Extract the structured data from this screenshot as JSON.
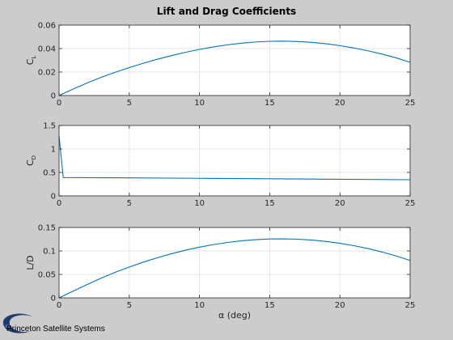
{
  "figure_title": "Lift and Drag Coefficients",
  "logo": {
    "text": "Princeton Satellite Systems"
  },
  "colors": {
    "line": "#0072bd",
    "axes_bg": "#ffffff",
    "figure_bg": "#cccccc",
    "grid": "#e6e6e6",
    "axis": "#262626"
  },
  "chart_data": [
    {
      "type": "line",
      "ylabel_main": "C",
      "ylabel_sub": "L",
      "xlabel": "",
      "xlim": [
        0,
        25
      ],
      "ylim": [
        0,
        0.06
      ],
      "grid": true,
      "xticks": [
        0,
        5,
        10,
        15,
        20,
        25
      ],
      "xtick_labels": [
        "0",
        "5",
        "10",
        "15",
        "20",
        "25"
      ],
      "yticks": [
        0,
        0.02,
        0.04,
        0.06
      ],
      "ytick_labels": [
        "0",
        "0.02",
        "0.04",
        "0.06"
      ],
      "x": [
        0,
        1,
        2,
        3,
        4,
        5,
        6,
        7,
        8,
        9,
        10,
        11,
        12,
        13,
        14,
        15,
        16,
        17,
        18,
        19,
        20,
        21,
        22,
        23,
        24,
        25
      ],
      "y": [
        0,
        0.0055,
        0.0107,
        0.0155,
        0.0198,
        0.0238,
        0.0275,
        0.0309,
        0.034,
        0.0368,
        0.0393,
        0.0414,
        0.0432,
        0.0446,
        0.0456,
        0.0462,
        0.0463,
        0.046,
        0.0453,
        0.0441,
        0.0425,
        0.0405,
        0.0381,
        0.0353,
        0.0321,
        0.0283
      ]
    },
    {
      "type": "line",
      "ylabel_main": "C",
      "ylabel_sub": "D",
      "xlabel": "",
      "xlim": [
        0,
        25
      ],
      "ylim": [
        0,
        1.5
      ],
      "grid": true,
      "xticks": [
        0,
        5,
        10,
        15,
        20,
        25
      ],
      "xtick_labels": [
        "0",
        "5",
        "10",
        "15",
        "20",
        "25"
      ],
      "yticks": [
        0,
        0.5,
        1,
        1.5
      ],
      "ytick_labels": [
        "0",
        "0.5",
        "1",
        "1.5"
      ],
      "x": [
        0,
        0.3,
        1,
        5,
        10,
        15,
        20,
        25
      ],
      "y": [
        1.28,
        0.39,
        0.39,
        0.385,
        0.375,
        0.365,
        0.355,
        0.345
      ]
    },
    {
      "type": "line",
      "ylabel_main": "L/D",
      "ylabel_sub": "",
      "xlabel": "α (deg)",
      "xlim": [
        0,
        25
      ],
      "ylim": [
        0,
        0.15
      ],
      "grid": true,
      "xticks": [
        0,
        5,
        10,
        15,
        20,
        25
      ],
      "xtick_labels": [
        "0",
        "5",
        "10",
        "15",
        "20",
        "25"
      ],
      "yticks": [
        0,
        0.05,
        0.1,
        0.15
      ],
      "ytick_labels": [
        "0",
        "0.05",
        "0.1",
        "0.15"
      ],
      "x": [
        0,
        1,
        2,
        3,
        4,
        5,
        6,
        7,
        8,
        9,
        10,
        11,
        12,
        13,
        14,
        15,
        16,
        17,
        18,
        19,
        20,
        21,
        22,
        23,
        24,
        25
      ],
      "y": [
        0,
        0.0145,
        0.0285,
        0.042,
        0.0545,
        0.0658,
        0.0762,
        0.0856,
        0.0941,
        0.1016,
        0.1081,
        0.1136,
        0.1181,
        0.1216,
        0.1241,
        0.1255,
        0.1258,
        0.125,
        0.1232,
        0.1203,
        0.1163,
        0.1112,
        0.1051,
        0.0978,
        0.0894,
        0.0797
      ]
    }
  ]
}
